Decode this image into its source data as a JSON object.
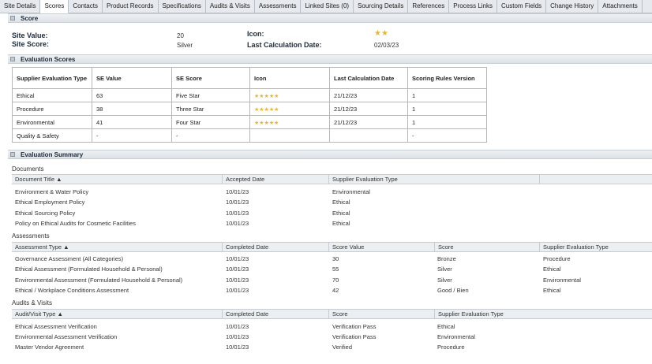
{
  "tabs": [
    "Site Details",
    "Scores",
    "Contacts",
    "Product Records",
    "Specifications",
    "Audits & Visits",
    "Assessments",
    "Linked Sites (0)",
    "Sourcing Details",
    "References",
    "Process Links",
    "Custom Fields",
    "Change History",
    "Attachments"
  ],
  "active_tab": "Scores",
  "score_section": {
    "title": "Score",
    "site_value_label": "Site Value:",
    "site_value": "20",
    "site_score_label": "Site Score:",
    "site_score": "Silver",
    "icon_label": "Icon:",
    "icon_stars": "★★",
    "last_calc_label": "Last Calculation Date:",
    "last_calc_date": "02/03/23"
  },
  "evaluation_scores": {
    "title": "Evaluation Scores",
    "columns": [
      "Supplier Evaluation Type",
      "SE Value",
      "SE Score",
      "Icon",
      "Last Calculation Date",
      "Scoring Rules Version"
    ],
    "rows": [
      {
        "type": "Ethical",
        "value": "63",
        "score": "Five Star",
        "stars_on": "★★★★★",
        "stars_off": "",
        "date": "21/12/23",
        "version": "1"
      },
      {
        "type": "Procedure",
        "value": "38",
        "score": "Three Star",
        "stars_on": "★★★",
        "stars_off": "★★",
        "date": "21/12/23",
        "version": "1"
      },
      {
        "type": "Environmental",
        "value": "41",
        "score": "Four Star",
        "stars_on": "★★★★",
        "stars_off": "★",
        "date": "21/12/23",
        "version": "1"
      },
      {
        "type": "Quality & Safety",
        "value": "-",
        "score": "-",
        "stars_on": "",
        "stars_off": "",
        "date": "",
        "version": "-"
      }
    ]
  },
  "evaluation_summary": {
    "title": "Evaluation Summary",
    "documents": {
      "heading": "Documents",
      "columns": [
        "Document Title ▲",
        "Accepted Date",
        "Supplier Evaluation Type",
        ""
      ],
      "rows": [
        [
          "Environment & Water Policy",
          "10/01/23",
          "Environmental"
        ],
        [
          "Ethical Employment Policy",
          "10/01/23",
          "Ethical"
        ],
        [
          "Ethical Sourcing Policy",
          "10/01/23",
          "Ethical"
        ],
        [
          "Policy on Ethical Audits for Cosmetic Facilities",
          "10/01/23",
          "Ethical"
        ]
      ]
    },
    "assessments": {
      "heading": "Assessments",
      "columns": [
        "Assessment Type ▲",
        "Completed Date",
        "Score Value",
        "Score",
        "Supplier Evaluation Type"
      ],
      "rows": [
        [
          "Governance Assessment (All Categories)",
          "10/01/23",
          "30",
          "Bronze",
          "Procedure"
        ],
        [
          "Ethical Assessment (Formulated Household & Personal)",
          "10/01/23",
          "55",
          "Silver",
          "Ethical"
        ],
        [
          "Environmental Assessment (Formulated Household & Personal)",
          "10/01/23",
          "70",
          "Silver",
          "Environmental"
        ],
        [
          "Ethical / Workplace Conditions Assessment",
          "10/01/23",
          "42",
          "Good / Bien",
          "Ethical"
        ]
      ]
    },
    "audits": {
      "heading": "Audits & Visits",
      "columns": [
        "Audit/Visit Type ▲",
        "Completed Date",
        "Score",
        "Supplier Evaluation Type",
        ""
      ],
      "rows": [
        [
          "Ethical Assessment Verification",
          "10/01/23",
          "Verification Pass",
          "Ethical"
        ],
        [
          "Environmental Assessment Verification",
          "10/01/23",
          "Verification Pass",
          "Environmental"
        ],
        [
          "Master Vendor Agreement",
          "10/01/23",
          "Verified",
          "Procedure"
        ]
      ]
    }
  }
}
